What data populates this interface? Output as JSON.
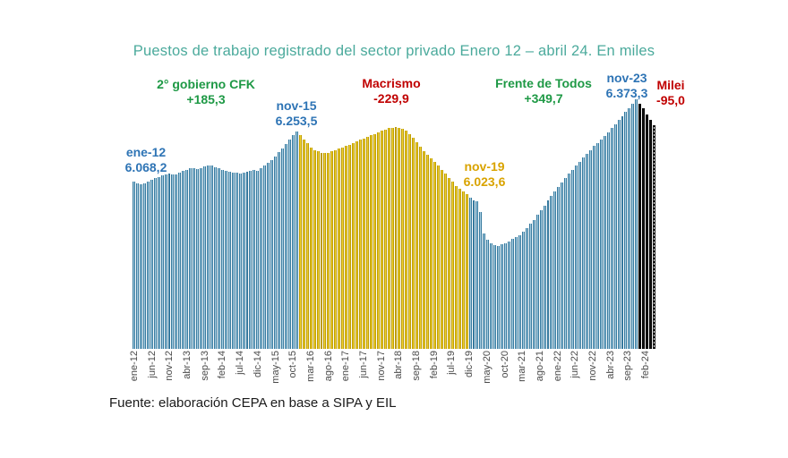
{
  "title": "Puestos de trabajo registrado del sector privado  Enero 12 – abril 24. En miles",
  "source_note": "Fuente: elaboración CEPA en base a SIPA y EIL",
  "colors": {
    "title_teal": "#4BAA9C",
    "blue_label": "#2E74B5",
    "green_label": "#1E9945",
    "red_label": "#C00000",
    "gold_label": "#D9A300",
    "bar_blue_fill": "#A9CFE2",
    "bar_blue_edge": "#36799E",
    "bar_yellow_fill": "#EFD22F",
    "bar_yellow_edge": "#BD9B06",
    "bar_black": "#141414",
    "tick_text": "#4a4a4a"
  },
  "annotations": {
    "ene12": {
      "line1": "ene-12",
      "line2": "6.068,2"
    },
    "cfk": {
      "line1": "2° gobierno CFK",
      "line2": "+185,3"
    },
    "nov15": {
      "line1": "nov-15",
      "line2": "6.253,5"
    },
    "macrismo": {
      "line1": "Macrismo",
      "line2": "-229,9"
    },
    "nov19": {
      "line1": "nov-19",
      "line2": "6.023,6"
    },
    "fdt": {
      "line1": "Frente de Todos",
      "line2": "+349,7"
    },
    "nov23": {
      "line1": "nov-23",
      "line2": "6.373,3"
    },
    "milei": {
      "line1": "Milei",
      "line2": "-95,0"
    }
  },
  "chart_data": {
    "type": "bar",
    "title": "Puestos de trabajo registrado del sector privado Enero 12 – abril 24. En miles",
    "unit": "miles de puestos de trabajo",
    "x_start": "ene-12",
    "x_end": "abr-24",
    "n_months": 148,
    "ylim": [
      5450,
      6476
    ],
    "grid": false,
    "legend": "none",
    "key_points": [
      {
        "label": "ene-12",
        "value": 6068.2
      },
      {
        "label": "nov-15",
        "value": 6253.5
      },
      {
        "label": "nov-19",
        "value": 6023.6
      },
      {
        "label": "nov-23",
        "value": 6373.3
      }
    ],
    "periods": [
      {
        "name": "2° gobierno CFK",
        "change": "+185,3",
        "from_label": "ene-12",
        "to_label": "nov-15"
      },
      {
        "name": "Macrismo",
        "change": "-229,9",
        "from_label": "dic-15",
        "to_label": "nov-19"
      },
      {
        "name": "Frente de Todos",
        "change": "+349,7",
        "from_label": "dic-19",
        "to_label": "nov-23"
      },
      {
        "name": "Milei",
        "change": "-95,0",
        "from_label": "dic-23",
        "to_label": "abr-24"
      }
    ],
    "segments": [
      {
        "period": "2° gobierno CFK",
        "fill": "#A9CFE2",
        "edge": "#36799E",
        "from": 0,
        "to": 46
      },
      {
        "period": "Macrismo",
        "fill": "#EFD22F",
        "edge": "#BD9B06",
        "from": 47,
        "to": 94
      },
      {
        "period": "Frente de Todos",
        "fill": "#A9CFE2",
        "edge": "#36799E",
        "from": 95,
        "to": 142
      },
      {
        "period": "Milei",
        "fill": "#141414",
        "edge": "#000000",
        "from": 143,
        "to": 147
      }
    ],
    "hatched_indices": [
      147
    ],
    "tick_every": 5,
    "tick_labels": [
      "ene-12",
      "jun-12",
      "nov-12",
      "abr-13",
      "sep-13",
      "feb-14",
      "jul-14",
      "dic-14",
      "may-15",
      "oct-15",
      "mar-16",
      "ago-16",
      "ene-17",
      "jun-17",
      "nov-17",
      "abr-18",
      "sep-18",
      "feb-19",
      "jul-19",
      "dic-19",
      "may-20",
      "oct-20",
      "mar-21",
      "ago-21",
      "ene-22",
      "jun-22",
      "nov-22",
      "abr-23",
      "sep-23",
      "feb-24"
    ],
    "values": [
      6068.2,
      6061.0,
      6058.5,
      6062.0,
      6068.0,
      6075.0,
      6081.0,
      6087.0,
      6092.0,
      6096.0,
      6099.0,
      6094.0,
      6097.0,
      6103.0,
      6108.0,
      6113.0,
      6117.0,
      6119.0,
      6116.0,
      6120.0,
      6124.0,
      6127.0,
      6129.0,
      6122.0,
      6118.0,
      6113.0,
      6110.0,
      6106.0,
      6103.0,
      6101.0,
      6100.0,
      6102.0,
      6105.0,
      6109.0,
      6113.0,
      6110.0,
      6120.0,
      6128.0,
      6138.0,
      6150.0,
      6163.0,
      6178.0,
      6192.0,
      6208.0,
      6224.0,
      6240.0,
      6253.5,
      6240.0,
      6225.0,
      6210.0,
      6196.0,
      6186.0,
      6180.0,
      6176.0,
      6174.0,
      6176.0,
      6180.0,
      6184.0,
      6190.0,
      6195.0,
      6200.0,
      6206.0,
      6212.0,
      6218.0,
      6223.0,
      6228.0,
      6234.0,
      6240.0,
      6246.0,
      6252.0,
      6258.0,
      6262.0,
      6266.0,
      6269.0,
      6270.0,
      6268.0,
      6263.0,
      6256.0,
      6246.0,
      6232.0,
      6215.0,
      6198.0,
      6182.0,
      6168.0,
      6155.0,
      6142.0,
      6128.0,
      6113.0,
      6098.0,
      6083.0,
      6068.0,
      6054.0,
      6042.0,
      6032.0,
      6023.6,
      6008.0,
      6000.0,
      5995.0,
      5958.0,
      5878.0,
      5853.0,
      5842.0,
      5835.0,
      5832.0,
      5836.0,
      5841.0,
      5848.0,
      5856.0,
      5863.0,
      5871.0,
      5885.0,
      5898.0,
      5912.0,
      5928.0,
      5945.0,
      5962.0,
      5980.0,
      5998.0,
      6015.0,
      6032.0,
      6048.0,
      6065.0,
      6082.0,
      6098.0,
      6112.0,
      6128.0,
      6142.0,
      6158.0,
      6172.0,
      6186.0,
      6200.0,
      6212.0,
      6224.0,
      6238.0,
      6252.0,
      6266.0,
      6280.0,
      6296.0,
      6310.0,
      6326.0,
      6342.0,
      6358.0,
      6373.3,
      6358.0,
      6340.0,
      6318.0,
      6298.0,
      6278.3
    ]
  }
}
